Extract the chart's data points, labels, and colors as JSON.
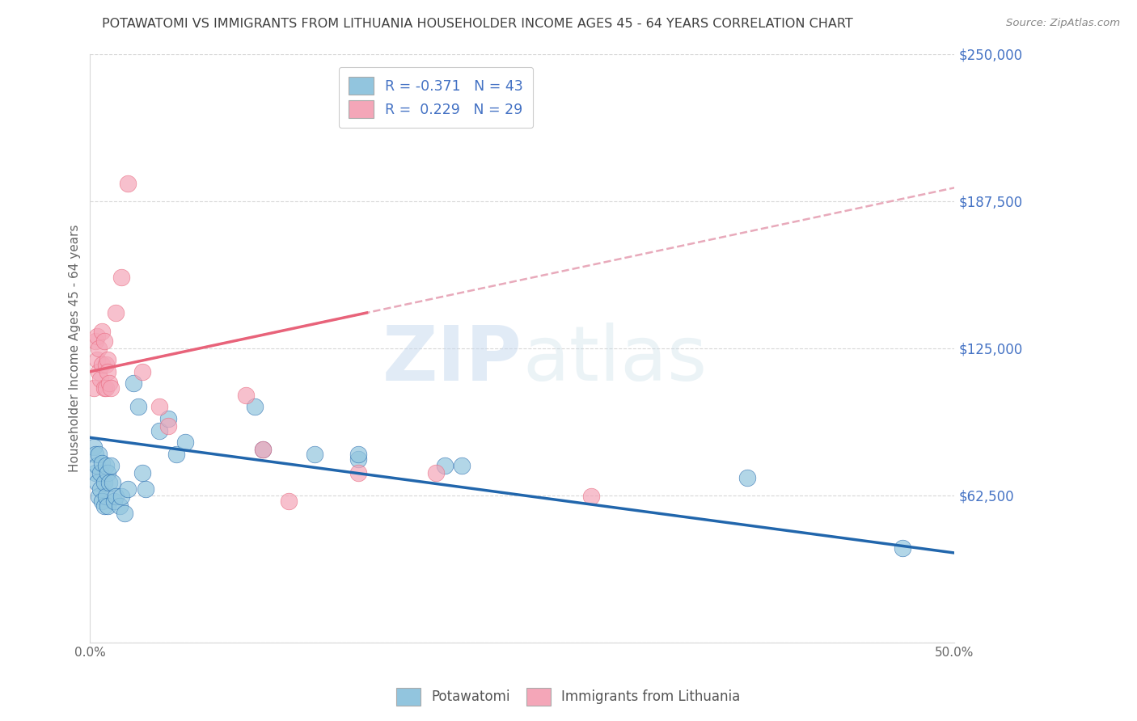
{
  "title": "POTAWATOMI VS IMMIGRANTS FROM LITHUANIA HOUSEHOLDER INCOME AGES 45 - 64 YEARS CORRELATION CHART",
  "source": "Source: ZipAtlas.com",
  "ylabel": "Householder Income Ages 45 - 64 years",
  "xlim": [
    0.0,
    0.5
  ],
  "ylim": [
    0,
    250000
  ],
  "yticks": [
    0,
    62500,
    125000,
    187500,
    250000
  ],
  "ytick_labels": [
    "",
    "$62,500",
    "$125,000",
    "$187,500",
    "$250,000"
  ],
  "background_color": "#ffffff",
  "grid_color": "#d8d8d8",
  "blue_scatter_color": "#92c5de",
  "pink_scatter_color": "#f4a6b8",
  "blue_line_color": "#2166ac",
  "pink_solid_color": "#e8637a",
  "pink_dashed_color": "#e8aabb",
  "title_color": "#404040",
  "axis_label_color": "#666666",
  "ytick_color": "#4472c4",
  "legend_r1": "R = -0.371",
  "legend_n1": "N = 43",
  "legend_r2": "R =  0.229",
  "legend_n2": "N = 29",
  "blue_scatter_x": [
    0.002,
    0.003,
    0.003,
    0.004,
    0.004,
    0.005,
    0.005,
    0.006,
    0.006,
    0.007,
    0.007,
    0.008,
    0.008,
    0.009,
    0.009,
    0.01,
    0.01,
    0.011,
    0.012,
    0.013,
    0.014,
    0.015,
    0.017,
    0.018,
    0.02,
    0.022,
    0.025,
    0.028,
    0.03,
    0.032,
    0.04,
    0.045,
    0.05,
    0.055,
    0.095,
    0.1,
    0.13,
    0.155,
    0.155,
    0.205,
    0.215,
    0.38,
    0.47
  ],
  "blue_scatter_y": [
    83000,
    72000,
    80000,
    75000,
    68000,
    80000,
    62000,
    72000,
    65000,
    76000,
    60000,
    68000,
    58000,
    75000,
    62000,
    72000,
    58000,
    68000,
    75000,
    68000,
    60000,
    62000,
    58000,
    62000,
    55000,
    65000,
    110000,
    100000,
    72000,
    65000,
    90000,
    95000,
    80000,
    85000,
    100000,
    82000,
    80000,
    78000,
    80000,
    75000,
    75000,
    70000,
    40000
  ],
  "pink_scatter_x": [
    0.002,
    0.003,
    0.004,
    0.004,
    0.005,
    0.005,
    0.006,
    0.007,
    0.007,
    0.008,
    0.008,
    0.009,
    0.009,
    0.01,
    0.01,
    0.011,
    0.012,
    0.015,
    0.018,
    0.022,
    0.03,
    0.04,
    0.045,
    0.09,
    0.1,
    0.115,
    0.155,
    0.2,
    0.29
  ],
  "pink_scatter_y": [
    108000,
    128000,
    120000,
    130000,
    115000,
    125000,
    112000,
    132000,
    118000,
    128000,
    108000,
    118000,
    108000,
    120000,
    115000,
    110000,
    108000,
    140000,
    155000,
    195000,
    115000,
    100000,
    92000,
    105000,
    82000,
    60000,
    72000,
    72000,
    62000
  ]
}
